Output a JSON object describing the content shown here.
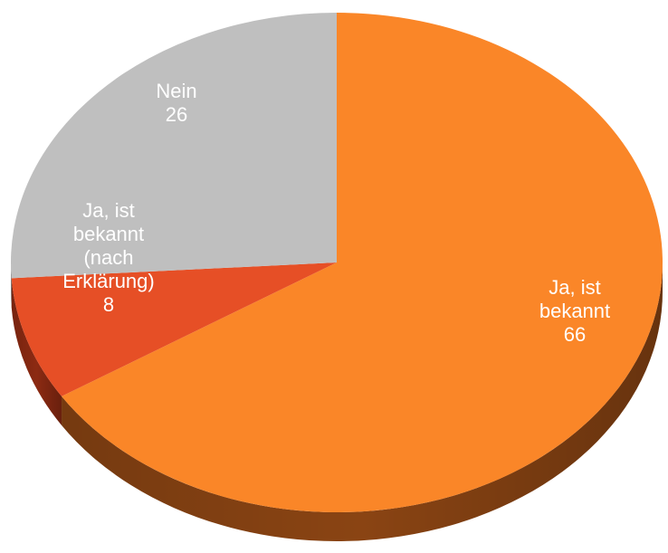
{
  "chart_data": {
    "type": "pie",
    "categories": [
      "Ja, ist bekannt",
      "Ja, ist bekannt (nach Erklärung)",
      "Nein"
    ],
    "values": [
      66,
      8,
      26
    ],
    "colors": [
      "#fa8628",
      "#e64f26",
      "#bfbfbf"
    ],
    "side_colors": [
      "#8a4413",
      "#8c2a12",
      "#7f7f7f"
    ]
  }
}
